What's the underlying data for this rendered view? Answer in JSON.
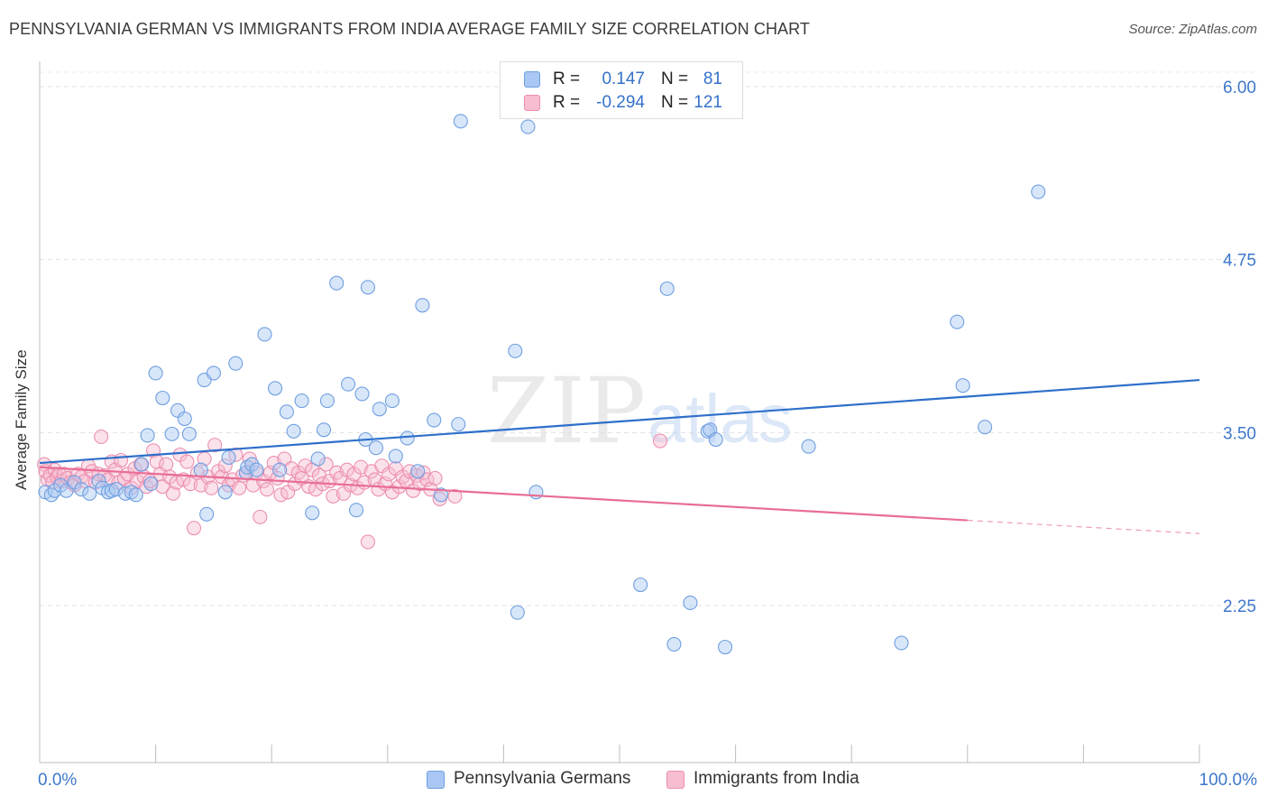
{
  "header": {
    "title": "PENNSYLVANIA GERMAN VS IMMIGRANTS FROM INDIA AVERAGE FAMILY SIZE CORRELATION CHART",
    "source": "Source: ZipAtlas.com"
  },
  "legend": {
    "rows": [
      {
        "r_label": "R =",
        "r_value": "0.147",
        "n_label": "N =",
        "n_value": "81",
        "color": "#a9c7f2",
        "border": "#6f9fe0"
      },
      {
        "r_label": "R =",
        "r_value": "-0.294",
        "n_label": "N =",
        "n_value": "121",
        "color": "#f7bdd0",
        "border": "#ec8fb0"
      }
    ]
  },
  "watermark": {
    "zip": "ZIP",
    "atlas": "atlas"
  },
  "chart_data": {
    "type": "scatter",
    "title": "PENNSYLVANIA GERMAN VS IMMIGRANTS FROM INDIA AVERAGE FAMILY SIZE CORRELATION CHART",
    "xlabel": "",
    "ylabel": "Average Family Size",
    "xlim": [
      0,
      100
    ],
    "ylim": [
      1.5,
      6.15
    ],
    "x_tick_labels": [
      "0.0%",
      "100.0%"
    ],
    "y_ticks": [
      2.25,
      3.5,
      4.75,
      6.0
    ],
    "y_tick_labels": [
      "2.25",
      "3.50",
      "4.75",
      "6.00"
    ],
    "grid": true,
    "legend_position": "bottom",
    "series": [
      {
        "name": "Pennsylvania Germans",
        "color": "#a9c7f2",
        "edge": "#6f9fe0",
        "trend_color": "#2e6fca",
        "trend": {
          "x0": 0,
          "y0": 3.28,
          "x1": 100,
          "y1": 3.88,
          "solid_to": 100
        },
        "x": [
          0.5,
          1.0,
          1.3,
          1.8,
          2.3,
          3.0,
          3.6,
          4.3,
          5.1,
          5.4,
          5.9,
          6.2,
          6.6,
          7.4,
          7.9,
          8.3,
          8.8,
          9.3,
          9.6,
          10.0,
          10.6,
          11.4,
          11.9,
          12.5,
          12.9,
          13.9,
          14.2,
          14.4,
          15.0,
          16.0,
          16.3,
          16.9,
          17.8,
          17.9,
          18.3,
          18.7,
          19.4,
          20.3,
          20.7,
          21.3,
          21.9,
          22.6,
          23.5,
          24.0,
          24.5,
          24.8,
          25.6,
          26.6,
          27.3,
          27.8,
          28.1,
          28.3,
          29.0,
          29.3,
          30.4,
          30.7,
          31.7,
          32.6,
          33.0,
          34.0,
          34.6,
          36.1,
          36.3,
          41.0,
          41.2,
          42.1,
          42.8,
          51.8,
          54.1,
          54.7,
          56.1,
          57.6,
          57.8,
          58.3,
          59.1,
          66.3,
          74.3,
          79.1,
          79.6,
          81.5,
          86.1
        ],
        "y": [
          3.07,
          3.05,
          3.08,
          3.12,
          3.08,
          3.14,
          3.09,
          3.06,
          3.15,
          3.1,
          3.07,
          3.08,
          3.09,
          3.06,
          3.07,
          3.05,
          3.27,
          3.48,
          3.13,
          3.93,
          3.75,
          3.49,
          3.66,
          3.6,
          3.49,
          3.23,
          3.88,
          2.91,
          3.93,
          3.07,
          3.32,
          4.0,
          3.21,
          3.25,
          3.27,
          3.23,
          4.21,
          3.82,
          3.23,
          3.65,
          3.51,
          3.73,
          2.92,
          3.31,
          3.52,
          3.73,
          4.58,
          3.85,
          2.94,
          3.78,
          3.45,
          4.55,
          3.39,
          3.67,
          3.73,
          3.33,
          3.46,
          3.22,
          4.42,
          3.59,
          3.05,
          3.56,
          5.75,
          4.09,
          2.2,
          5.71,
          3.07,
          2.4,
          4.54,
          1.97,
          2.27,
          3.51,
          3.52,
          3.45,
          1.95,
          3.4,
          1.98,
          4.3,
          3.84,
          3.54,
          5.24
        ]
      },
      {
        "name": "Immigrants from India",
        "color": "#f7bdd0",
        "edge": "#ec8fb0",
        "trend_color": "#e86d95",
        "trend": {
          "x0": 0,
          "y0": 3.25,
          "x1": 100,
          "y1": 2.77,
          "solid_to": 80
        },
        "x": [
          0.4,
          0.5,
          0.7,
          0.9,
          1.1,
          1.3,
          1.5,
          1.7,
          1.9,
          2.1,
          2.4,
          2.7,
          3.0,
          3.3,
          3.6,
          3.9,
          4.2,
          4.5,
          4.8,
          5.1,
          5.3,
          5.6,
          5.9,
          6.2,
          6.5,
          6.8,
          7.0,
          7.3,
          7.6,
          7.9,
          8.2,
          8.4,
          8.7,
          9.0,
          9.2,
          9.5,
          9.8,
          10.1,
          10.4,
          10.6,
          10.9,
          11.2,
          11.5,
          11.8,
          12.1,
          12.4,
          12.7,
          13.0,
          13.3,
          13.6,
          13.9,
          14.2,
          14.5,
          14.8,
          15.1,
          15.4,
          15.7,
          16.0,
          16.3,
          16.6,
          16.9,
          17.2,
          17.5,
          17.8,
          18.1,
          18.4,
          18.7,
          19.0,
          19.3,
          19.6,
          19.9,
          20.2,
          20.5,
          20.8,
          21.1,
          21.4,
          21.7,
          22.0,
          22.3,
          22.6,
          22.9,
          23.2,
          23.5,
          23.8,
          24.1,
          24.4,
          24.7,
          25.0,
          25.3,
          25.6,
          25.9,
          26.2,
          26.5,
          26.8,
          27.1,
          27.4,
          27.7,
          28.0,
          28.3,
          28.6,
          28.9,
          29.2,
          29.5,
          29.8,
          30.1,
          30.4,
          30.7,
          31.0,
          31.3,
          31.6,
          31.9,
          32.2,
          32.5,
          32.8,
          33.1,
          33.4,
          33.7,
          34.1,
          34.5,
          35.8,
          53.5
        ],
        "y": [
          3.27,
          3.22,
          3.16,
          3.19,
          3.14,
          3.23,
          3.18,
          3.2,
          3.15,
          3.2,
          3.17,
          3.14,
          3.12,
          3.2,
          3.18,
          3.15,
          3.26,
          3.22,
          3.14,
          3.2,
          3.47,
          3.19,
          3.16,
          3.29,
          3.23,
          3.14,
          3.3,
          3.17,
          3.2,
          3.1,
          3.24,
          3.15,
          3.27,
          3.18,
          3.11,
          3.15,
          3.37,
          3.29,
          3.2,
          3.11,
          3.27,
          3.18,
          3.06,
          3.14,
          3.34,
          3.16,
          3.29,
          3.13,
          2.81,
          3.21,
          3.12,
          3.31,
          3.18,
          3.1,
          3.41,
          3.22,
          3.18,
          3.26,
          3.12,
          3.16,
          3.34,
          3.1,
          3.19,
          3.21,
          3.31,
          3.12,
          3.21,
          2.89,
          3.15,
          3.09,
          3.21,
          3.28,
          3.17,
          3.05,
          3.31,
          3.07,
          3.24,
          3.13,
          3.21,
          3.17,
          3.26,
          3.11,
          3.23,
          3.09,
          3.19,
          3.13,
          3.27,
          3.15,
          3.04,
          3.21,
          3.17,
          3.06,
          3.23,
          3.12,
          3.2,
          3.1,
          3.25,
          3.14,
          2.71,
          3.22,
          3.16,
          3.09,
          3.26,
          3.13,
          3.2,
          3.07,
          3.24,
          3.11,
          3.18,
          3.15,
          3.22,
          3.08,
          3.19,
          3.13,
          3.21,
          3.16,
          3.09,
          3.17,
          3.02,
          3.04,
          3.44
        ]
      }
    ]
  }
}
